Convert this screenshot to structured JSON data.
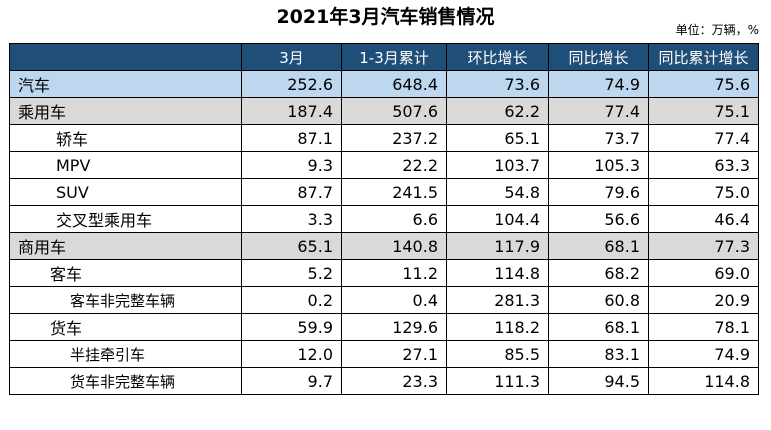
{
  "title": "2021年3月汽车销售情况",
  "unit": "单位：万辆，%",
  "columns": [
    "",
    "3月",
    "1-3月累计",
    "环比增长",
    "同比增长",
    "同比累计增长"
  ],
  "rows": [
    {
      "label": "汽车",
      "values": [
        "252.6",
        "648.4",
        "73.6",
        "74.9",
        "75.6"
      ]
    },
    {
      "label": "乘用车",
      "values": [
        "187.4",
        "507.6",
        "62.2",
        "77.4",
        "75.1"
      ]
    },
    {
      "label": "轿车",
      "values": [
        "87.1",
        "237.2",
        "65.1",
        "73.7",
        "77.4"
      ]
    },
    {
      "label": "MPV",
      "values": [
        "9.3",
        "22.2",
        "103.7",
        "105.3",
        "63.3"
      ]
    },
    {
      "label": "SUV",
      "values": [
        "87.7",
        "241.5",
        "54.8",
        "79.6",
        "75.0"
      ]
    },
    {
      "label": "交叉型乘用车",
      "values": [
        "3.3",
        "6.6",
        "104.4",
        "56.6",
        "46.4"
      ]
    },
    {
      "label": "商用车",
      "values": [
        "65.1",
        "140.8",
        "117.9",
        "68.1",
        "77.3"
      ]
    },
    {
      "label": "客车",
      "values": [
        "5.2",
        "11.2",
        "114.8",
        "68.2",
        "69.0"
      ]
    },
    {
      "label": "客车非完整车辆",
      "values": [
        "0.2",
        "0.4",
        "281.3",
        "60.8",
        "20.9"
      ]
    },
    {
      "label": "货车",
      "values": [
        "59.9",
        "129.6",
        "118.2",
        "68.1",
        "78.1"
      ]
    },
    {
      "label": "半挂牵引车",
      "values": [
        "12.0",
        "27.1",
        "85.5",
        "83.1",
        "74.9"
      ]
    },
    {
      "label": "货车非完整车辆",
      "values": [
        "9.7",
        "23.3",
        "111.3",
        "94.5",
        "114.8"
      ]
    }
  ],
  "colors": {
    "header_bg": "#1f4e79",
    "total_row_bg": "#bdd7ee",
    "category_row_bg": "#d9d9d9"
  }
}
